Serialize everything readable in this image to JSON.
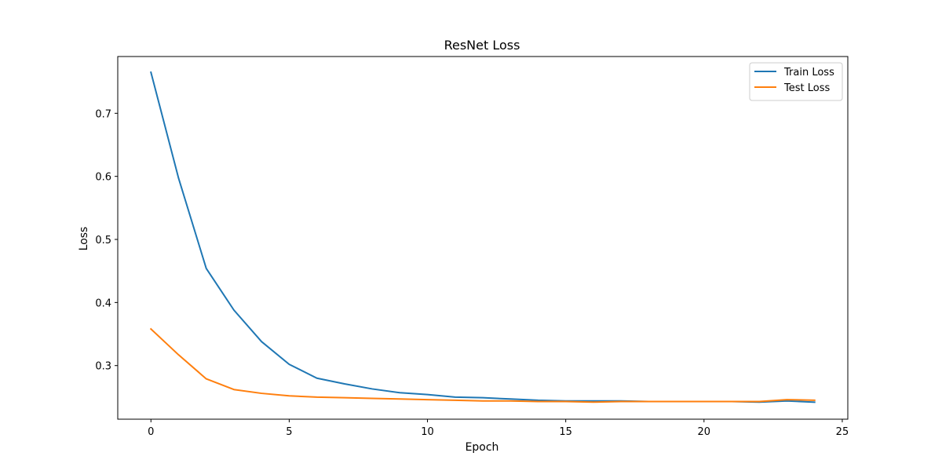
{
  "chart_data": {
    "type": "line",
    "title": "ResNet Loss",
    "xlabel": "Epoch",
    "ylabel": "Loss",
    "xlim": [
      -1.2,
      25.2
    ],
    "ylim": [
      0.215,
      0.79
    ],
    "xticks": [
      0,
      5,
      10,
      15,
      20,
      25
    ],
    "yticks": [
      0.3,
      0.4,
      0.5,
      0.6,
      0.7
    ],
    "xtick_labels": [
      "0",
      "5",
      "10",
      "15",
      "20",
      "25"
    ],
    "ytick_labels": [
      "0.3",
      "0.4",
      "0.5",
      "0.6",
      "0.7"
    ],
    "grid": false,
    "legend_position": "top-right",
    "x": [
      0,
      1,
      2,
      3,
      4,
      5,
      6,
      7,
      8,
      9,
      10,
      11,
      12,
      13,
      14,
      15,
      16,
      17,
      18,
      19,
      20,
      21,
      22,
      23,
      24
    ],
    "series": [
      {
        "name": "Train Loss",
        "color": "#1f77b4",
        "values": [
          0.765,
          0.597,
          0.454,
          0.388,
          0.338,
          0.302,
          0.28,
          0.271,
          0.263,
          0.257,
          0.254,
          0.25,
          0.249,
          0.247,
          0.245,
          0.244,
          0.244,
          0.244,
          0.243,
          0.243,
          0.243,
          0.243,
          0.242,
          0.244,
          0.242
        ]
      },
      {
        "name": "Test Loss",
        "color": "#ff7f0e",
        "values": [
          0.358,
          0.317,
          0.279,
          0.262,
          0.256,
          0.252,
          0.25,
          0.249,
          0.248,
          0.247,
          0.246,
          0.245,
          0.244,
          0.244,
          0.243,
          0.243,
          0.242,
          0.243,
          0.243,
          0.243,
          0.243,
          0.243,
          0.243,
          0.246,
          0.245
        ]
      }
    ]
  }
}
